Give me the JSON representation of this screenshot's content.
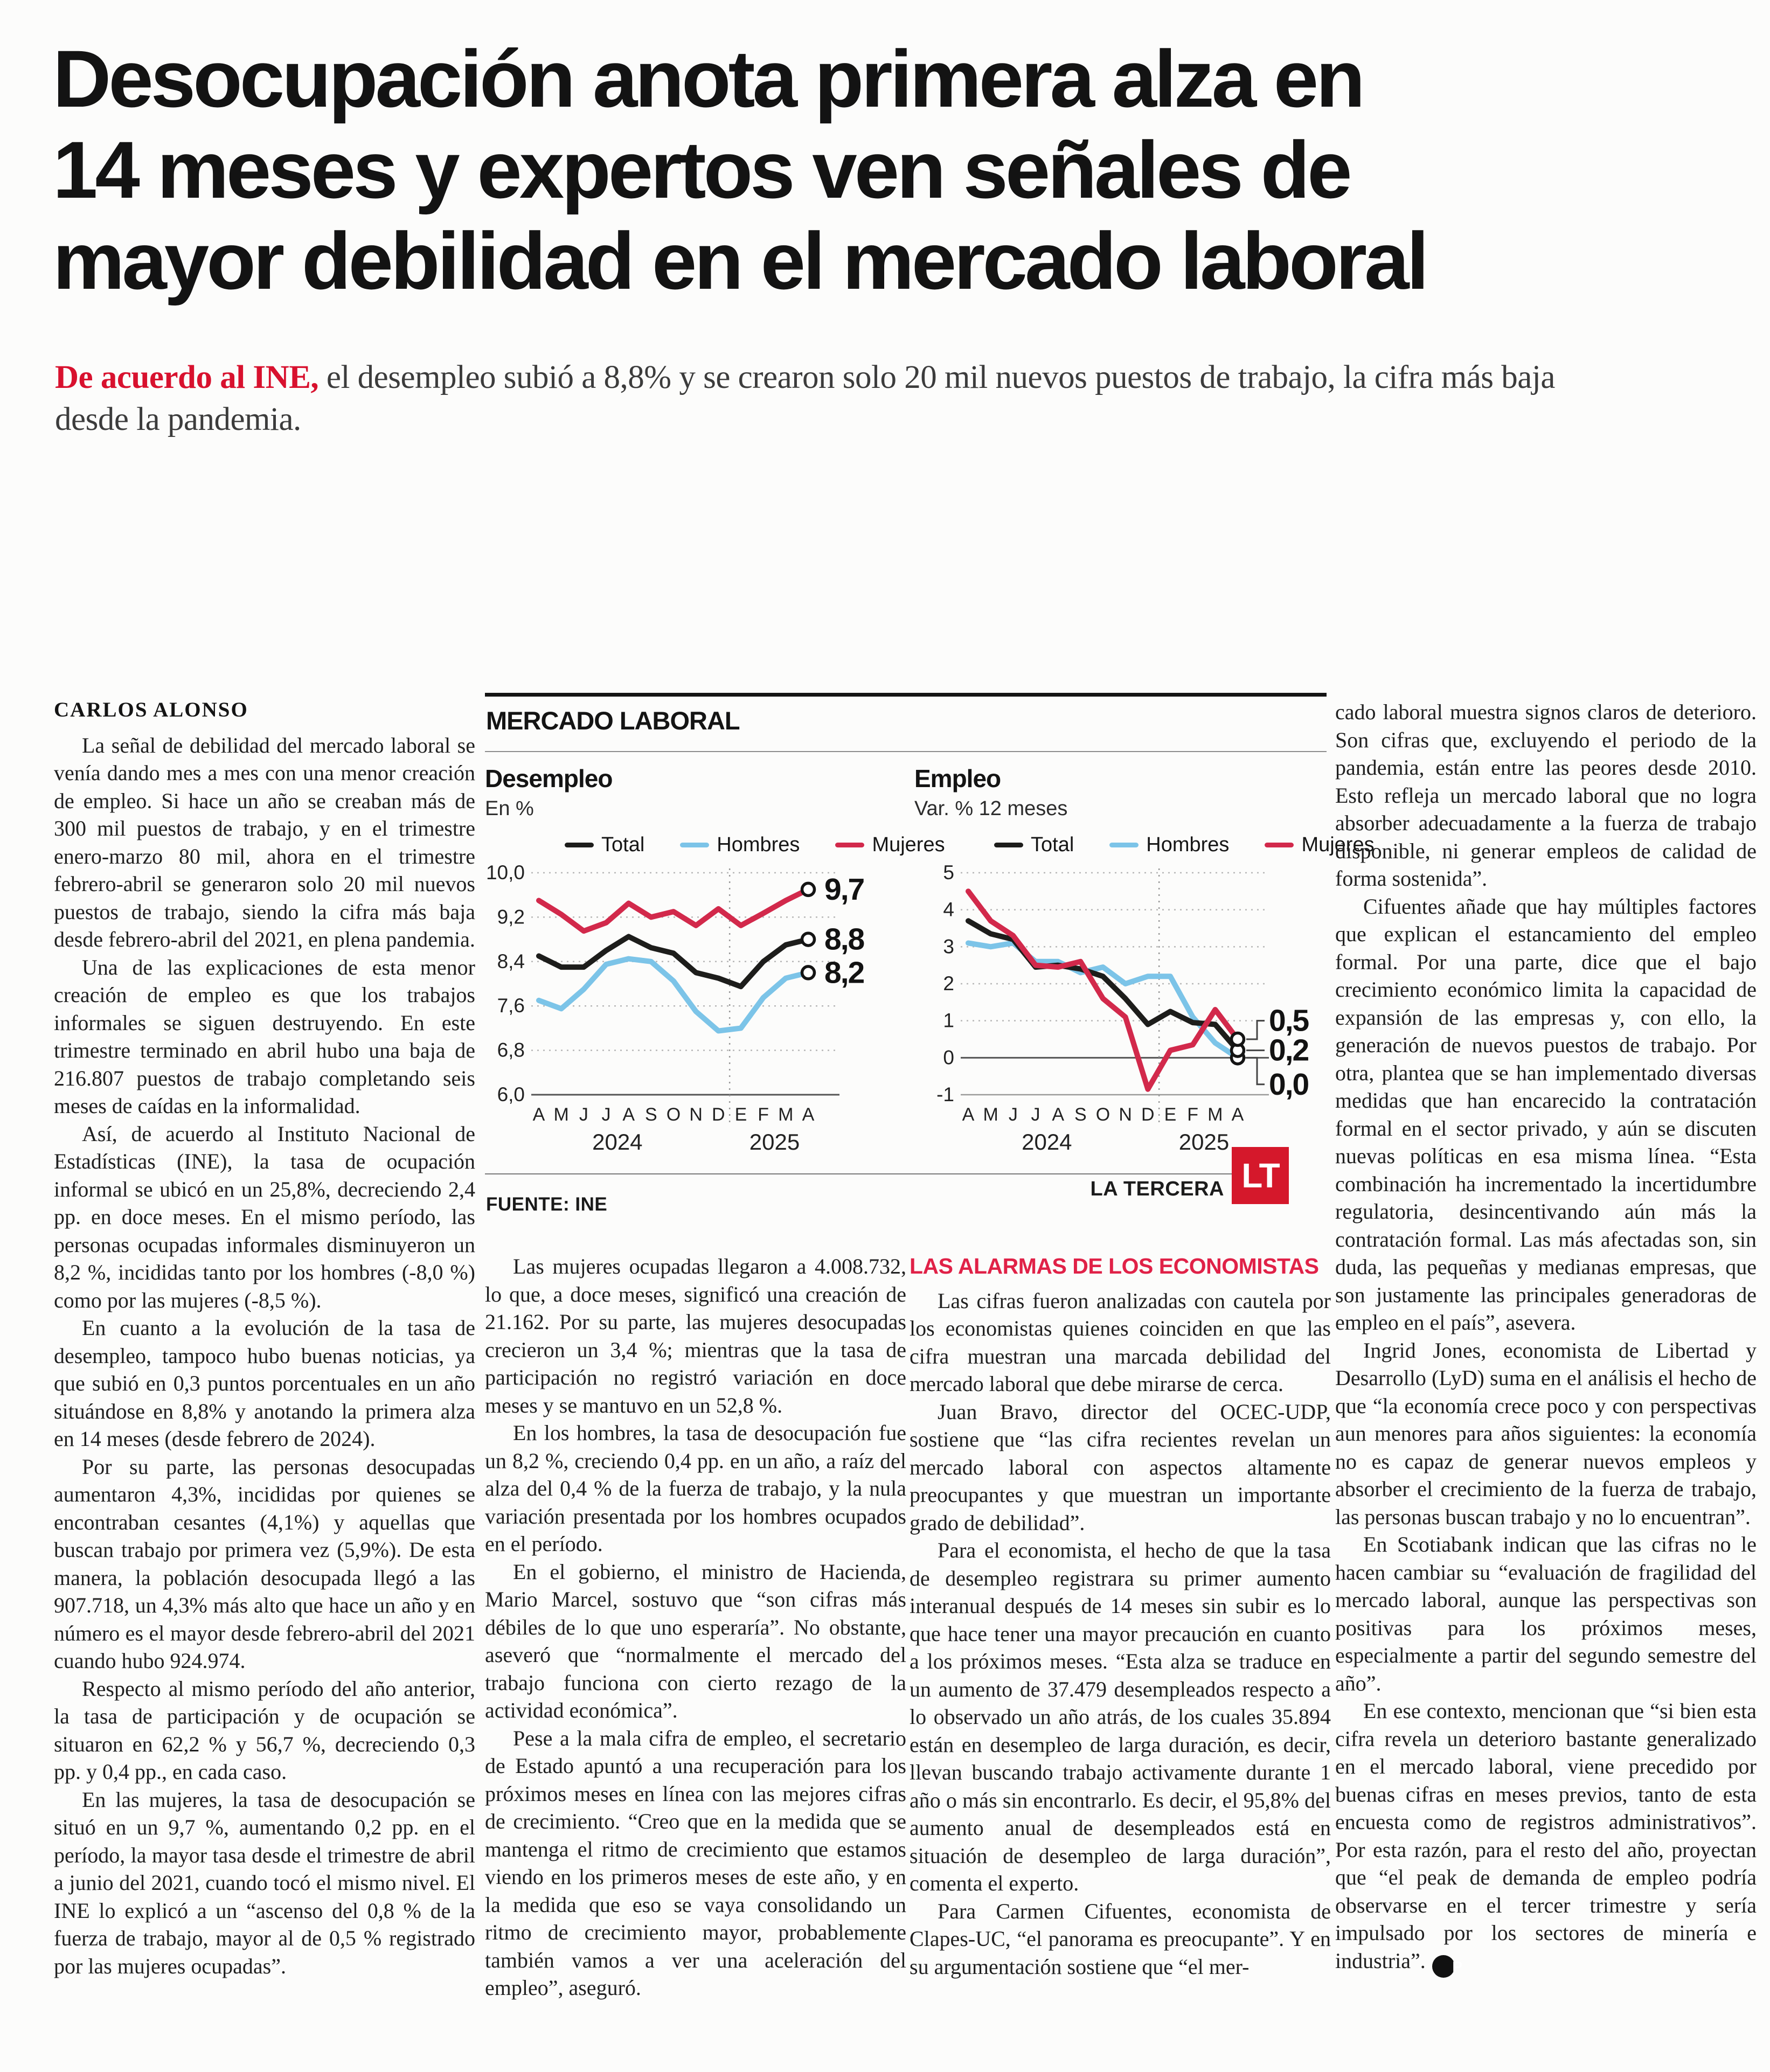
{
  "page": {
    "title_lines": [
      "Desocupación anota primera alza en",
      "14 meses y expertos ven señales de",
      "mayor debilidad en el mercado laboral"
    ],
    "deck_lead": "De acuerdo al INE,",
    "deck_rest": " el desempleo subió a 8,8% y se crearon solo 20 mil nuevos puestos de trabajo, la cifra más baja desde la pandemia.",
    "byline": "CARLOS ALONSO"
  },
  "colors": {
    "accent_red": "#d8112e",
    "chart_red": "#d2294b",
    "chart_blue": "#7cc4e8",
    "chart_black": "#1d1d1b",
    "logo_red": "#d5182b"
  },
  "chart_block": {
    "kicker": "MERCADO LABORAL",
    "source": "FUENTE: INE",
    "brand": "LA TERCERA",
    "brand_logo": "LT"
  },
  "columns": {
    "col1": [
      "La señal de debilidad del mercado laboral se venía dando mes a mes con una menor creación de empleo. Si hace un año se creaban más de 300 mil puestos de trabajo, y en el trimestre enero-marzo 80 mil, ahora en el trimestre febrero-abril se generaron solo 20 mil nuevos puestos de trabajo, siendo la cifra más baja desde febrero-abril del 2021, en plena pandemia.",
      "Una de las explicaciones de esta menor creación de empleo es que los trabajos informales se siguen destruyendo. En este trimestre terminado en abril hubo una baja de 216.807 puestos de trabajo completando seis meses de caídas en la informalidad.",
      "Así, de acuerdo al Instituto Nacional de Estadísticas (INE), la tasa de ocupación informal se ubicó en un 25,8%, decreciendo 2,4 pp. en doce meses. En el mismo período, las personas ocupadas informales disminuyeron un 8,2 %, incididas tanto por los hombres (-8,0 %) como por las mujeres (-8,5 %).",
      "En cuanto a la evolución de la tasa de desempleo, tampoco hubo buenas noticias, ya que subió en 0,3 puntos porcentuales en un año situándose en 8,8% y anotando la primera alza en 14 meses (desde febrero de 2024).",
      "Por su parte, las personas desocupadas aumentaron 4,3%, incididas por quienes se encontraban cesantes (4,1%) y aquellas que buscan trabajo por primera vez (5,9%). De esta manera, la población desocupada llegó a las 907.718, un 4,3% más alto que hace un año y en número es el mayor desde febrero-abril del 2021 cuando hubo 924.974.",
      "Respecto al mismo período del año anterior, la tasa de participación y de ocupación se situaron en 62,2 % y 56,7 %, decreciendo 0,3 pp. y 0,4 pp., en cada caso.",
      "En las mujeres, la tasa de desocupación se situó en un 9,7 %, aumentando 0,2 pp. en el período, la mayor tasa desde el trimestre de abril a junio del 2021, cuando tocó el mismo nivel. El INE lo explicó a un “ascenso del 0,8 % de la fuerza de trabajo, mayor al de 0,5 % registrado por las mujeres ocupadas”."
    ],
    "col2": [
      "Las mujeres ocupadas llegaron a 4.008.732, lo que, a doce meses, significó una creación de 21.162. Por su parte, las mujeres desocupadas crecieron un 3,4 %; mientras que la tasa de participación no registró variación en doce meses y se mantuvo en un 52,8 %.",
      "En los hombres, la tasa de desocupación fue un 8,2 %, creciendo 0,4 pp. en un año, a raíz del alza del 0,4 % de la fuerza de trabajo, y la nula variación presentada por los hombres ocupados en el período.",
      "En el gobierno, el ministro de Hacienda, Mario Marcel, sostuvo que “son cifras más débiles de lo que uno esperaría”. No obstante, aseveró que “normalmente el mercado del trabajo funciona con cierto rezago de la actividad económica”.",
      "Pese a la mala cifra de empleo, el secretario de Estado apuntó a una recuperación para los próximos meses en línea con las mejores cifras de crecimiento. “Creo que en la medida que se mantenga el ritmo de crecimiento que estamos viendo en los primeros meses de este año, y en la medida que eso se vaya consolidando un ritmo de crecimiento mayor, probablemente también vamos a ver una aceleración del empleo”, aseguró."
    ],
    "col3_heading": "LAS ALARMAS DE LOS ECONOMISTAS",
    "col3": [
      "Las cifras fueron analizadas con cautela por los economistas quienes coinciden en que las cifra muestran una marcada debilidad del mercado laboral que debe mirarse de cerca.",
      "Juan Bravo, director del OCEC-UDP, sostiene que “las cifra recientes revelan un mercado laboral con aspectos altamente preocupantes y que muestran un importante grado de debilidad”.",
      "Para el economista, el hecho de que la tasa de desempleo registrara su primer aumento interanual después de 14 meses sin subir es lo que hace tener una mayor precaución en cuanto a los próximos meses. “Esta alza se traduce en un aumento de 37.479 desempleados respecto a lo observado un año atrás, de los cuales 35.894 están en desempleo de larga duración, es decir, llevan buscando trabajo activamente durante 1 año o más sin encontrarlo. Es decir, el 95,8% del aumento anual de desempleados está en situación de desempleo de larga duración”, comenta el experto.",
      "Para Carmen Cifuentes, economista de Clapes-UC, “el panorama es preocupante”. Y en su argumentación sostiene que “el mer-"
    ],
    "col4": [
      "cado laboral muestra signos claros de deterioro. Son cifras que, excluyendo el periodo de la pandemia, están entre las peores desde 2010. Esto refleja un mercado laboral que no logra absorber adecuadamente a la fuerza de trabajo disponible, ni generar empleos de calidad de forma sostenida”.",
      "Cifuentes añade que hay múltiples factores que explican el estancamiento del empleo formal. Por una parte, dice que el bajo crecimiento económico limita la capacidad de expansión de las empresas y, con ello, la generación de nuevos puestos de trabajo. Por otra, plantea que se han implementado diversas medidas que han encarecido la contratación formal en el sector privado, y aún se discuten nuevas políticas en esa misma línea. “Esta combinación ha incrementado la incertidumbre regulatoria, desincentivando aún más la contratación formal. Las más afectadas son, sin duda, las pequeñas y medianas empresas, que son justamente las principales generadoras de empleo en el país”, asevera.",
      "Ingrid Jones, economista de Libertad y Desarrollo (LyD) suma en el análisis el hecho de que “la economía crece poco y con perspectivas aun menores para años siguientes: la economía no es capaz de generar nuevos empleos y absorber el crecimiento de la fuerza de trabajo, las personas buscan trabajo y no lo encuentran”.",
      "En Scotiabank indican que las cifras no le hacen cambiar su “evaluación de fragilidad del mercado laboral, aunque las perspectivas son positivas para los próximos meses, especialmente a partir del segundo semestre del año”.",
      "En ese contexto, mencionan que “si bien esta cifra revela un deterioro bastante generalizado en el mercado laboral, viene precedido por buenas cifras en meses previos, tanto de esta encuesta como de registros administrativos”. Por esta razón, para el resto del año, proyectan que “el peak de demanda de empleo podría observarse en el tercer trimestre y sería impulsado por los sectores de minería e industria”."
    ],
    "end_mark": "P"
  },
  "chart_data": [
    {
      "type": "line",
      "title": "Desempleo",
      "subtitle": "En %",
      "months": [
        "A",
        "M",
        "J",
        "J",
        "A",
        "S",
        "O",
        "N",
        "D",
        "E",
        "F",
        "M",
        "A"
      ],
      "years": [
        {
          "label": "2024",
          "pos": 3.5
        },
        {
          "label": "2025",
          "pos": 10.5
        }
      ],
      "split": 8.5,
      "ylim": [
        6.0,
        10.0
      ],
      "yticks": [
        {
          "v": 10.0,
          "label": "10,0",
          "style": "dot"
        },
        {
          "v": 9.2,
          "label": "9,2",
          "style": "dot"
        },
        {
          "v": 8.4,
          "label": "8,4",
          "style": "dot"
        },
        {
          "v": 7.6,
          "label": "7,6",
          "style": "dot"
        },
        {
          "v": 6.8,
          "label": "6,8",
          "style": "dot"
        },
        {
          "v": 6.0,
          "label": "6,0",
          "style": "solid"
        }
      ],
      "leaders": false,
      "legend": [
        {
          "label": "Total",
          "color": "#1d1d1b"
        },
        {
          "label": "Hombres",
          "color": "#7cc4e8"
        },
        {
          "label": "Mujeres",
          "color": "#d2294b"
        }
      ],
      "series": [
        {
          "name": "Hombres",
          "color": "#7cc4e8",
          "values": [
            7.7,
            7.55,
            7.9,
            8.35,
            8.45,
            8.4,
            8.05,
            7.5,
            7.15,
            7.2,
            7.75,
            8.1,
            8.2
          ],
          "end_label": "8,2",
          "label_offset": 0
        },
        {
          "name": "Total",
          "color": "#1d1d1b",
          "values": [
            8.5,
            8.3,
            8.3,
            8.6,
            8.85,
            8.65,
            8.55,
            8.2,
            8.1,
            7.95,
            8.4,
            8.7,
            8.8
          ],
          "end_label": "8,8",
          "label_offset": 0
        },
        {
          "name": "Mujeres",
          "color": "#d2294b",
          "values": [
            9.5,
            9.25,
            8.95,
            9.1,
            9.45,
            9.2,
            9.3,
            9.05,
            9.35,
            9.05,
            9.27,
            9.5,
            9.7
          ],
          "end_label": "9,7",
          "label_offset": 0
        }
      ]
    },
    {
      "type": "line",
      "title": "Empleo",
      "subtitle": "Var. % 12 meses",
      "months": [
        "A",
        "M",
        "J",
        "J",
        "A",
        "S",
        "O",
        "N",
        "D",
        "E",
        "F",
        "M",
        "A"
      ],
      "years": [
        {
          "label": "2024",
          "pos": 3.5
        },
        {
          "label": "2025",
          "pos": 10.5
        }
      ],
      "split": 8.5,
      "ylim": [
        -1.0,
        5.0
      ],
      "yticks": [
        {
          "v": 5,
          "label": "5",
          "style": "dot"
        },
        {
          "v": 4,
          "label": "4",
          "style": "dot"
        },
        {
          "v": 3,
          "label": "3",
          "style": "dot"
        },
        {
          "v": 2,
          "label": "2",
          "style": "dot"
        },
        {
          "v": 1,
          "label": "1",
          "style": "dot"
        },
        {
          "v": 0,
          "label": "0",
          "style": "solid"
        },
        {
          "v": -1,
          "label": "-1",
          "style": "axis"
        }
      ],
      "leaders": true,
      "legend": [
        {
          "label": "Total",
          "color": "#1d1d1b"
        },
        {
          "label": "Hombres",
          "color": "#7cc4e8"
        },
        {
          "label": "Mujeres",
          "color": "#d2294b"
        }
      ],
      "series": [
        {
          "name": "Hombres",
          "color": "#7cc4e8",
          "values": [
            3.1,
            3.0,
            3.1,
            2.6,
            2.6,
            2.3,
            2.45,
            2.0,
            2.2,
            2.2,
            1.1,
            0.4,
            0.0
          ],
          "end_label": "0,0",
          "label_offset": -0.72
        },
        {
          "name": "Total",
          "color": "#1d1d1b",
          "values": [
            3.7,
            3.35,
            3.2,
            2.45,
            2.5,
            2.4,
            2.2,
            1.6,
            0.9,
            1.25,
            0.95,
            0.9,
            0.2
          ],
          "end_label": "0,2",
          "label_offset": 0
        },
        {
          "name": "Mujeres",
          "color": "#d2294b",
          "values": [
            4.5,
            3.7,
            3.3,
            2.5,
            2.45,
            2.6,
            1.6,
            1.1,
            -0.85,
            0.2,
            0.35,
            1.3,
            0.5
          ],
          "end_label": "0,5",
          "label_offset": 0.5
        }
      ]
    }
  ]
}
